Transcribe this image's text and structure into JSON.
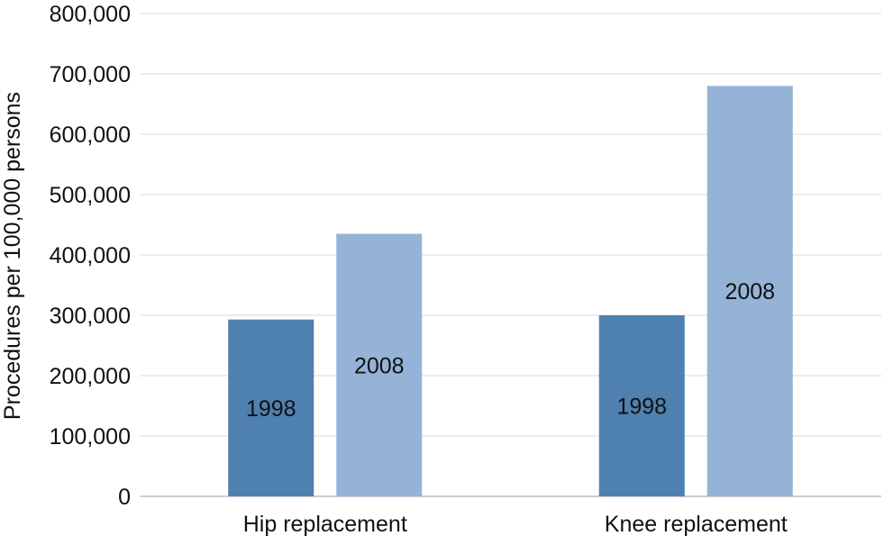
{
  "chart_data": {
    "type": "bar",
    "categories": [
      "Hip replacement",
      "Knee replacement"
    ],
    "series": [
      {
        "name": "1998",
        "values": [
          293000,
          300000
        ],
        "color": "#4e80b0"
      },
      {
        "name": "2008",
        "values": [
          435000,
          680000
        ],
        "color": "#95b3d7"
      }
    ],
    "ylabel": "Procedures per 100,000 persons",
    "ylim": [
      0,
      800000
    ],
    "yticks": [
      0,
      100000,
      200000,
      300000,
      400000,
      500000,
      600000,
      700000,
      800000
    ],
    "ytick_labels": [
      "0",
      "100,000",
      "200,000",
      "300,000",
      "400,000",
      "500,000",
      "600,000",
      "700,000",
      "800,000"
    ],
    "grid": true,
    "grid_color": "#d9d9d9",
    "legend": "none (series labels printed inside bars)"
  }
}
